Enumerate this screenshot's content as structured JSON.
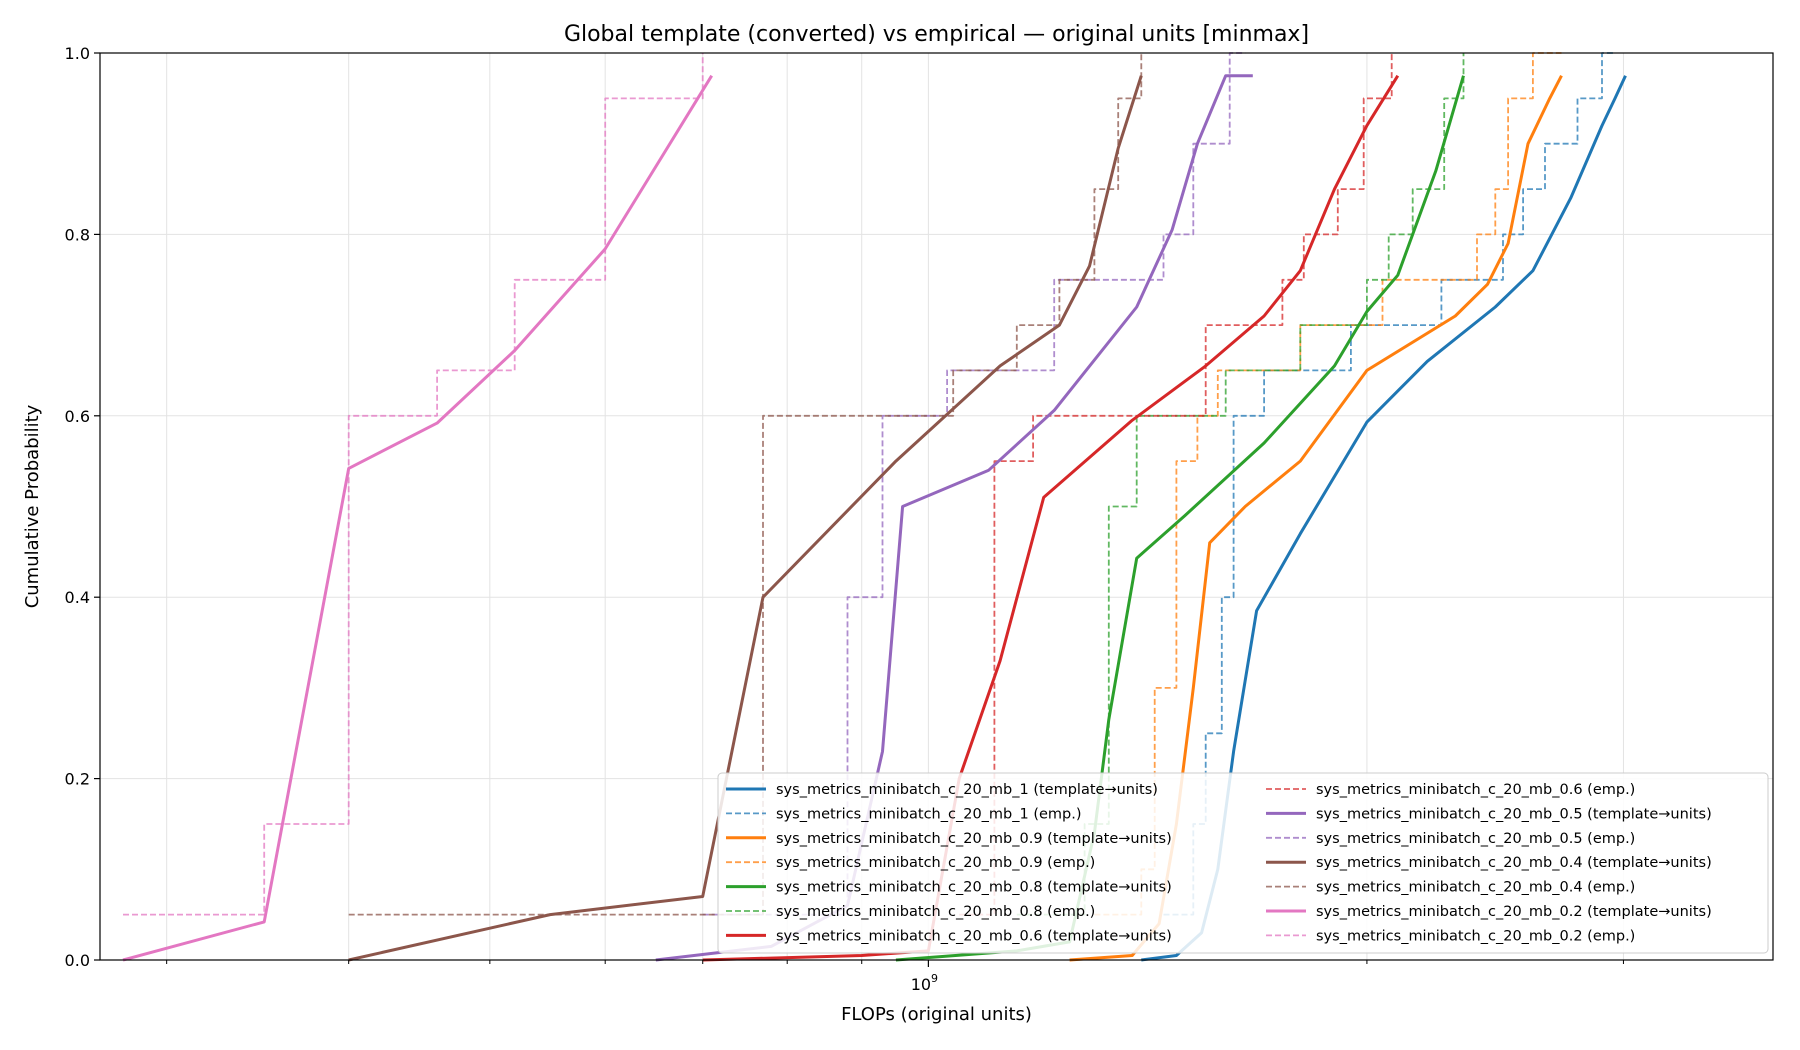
{
  "chart_data": {
    "type": "line",
    "title": "Global template (converted) vs empirical — original units [minmax]",
    "xlabel": "FLOPs (original units)",
    "ylabel": "Cumulative Probability",
    "x_scale": "log",
    "xlim": [
      270000000,
      3800000000
    ],
    "ylim": [
      0,
      1
    ],
    "y_ticks": [
      0.0,
      0.2,
      0.4,
      0.6,
      0.8,
      1.0
    ],
    "y_tick_labels": [
      "0.0",
      "0.2",
      "0.4",
      "0.6",
      "0.8",
      "1.0"
    ],
    "x_major_ticks": [
      1000000000
    ],
    "x_major_tick_labels": [
      "10^9"
    ],
    "x_minor_ticks": [
      300000000,
      400000000,
      500000000,
      600000000,
      700000000,
      800000000,
      900000000,
      2000000000,
      3000000000
    ],
    "grid": true,
    "legend_position": "lower right",
    "series": [
      {
        "name": "sys_metrics_minibatch_c_20_mb_1 (template→units)",
        "style": "solid",
        "color": "#1f77b4",
        "x": [
          1400000000,
          1480000000,
          1540000000,
          1580000000,
          1620000000,
          1680000000,
          1800000000,
          2000000000,
          2200000000,
          2450000000,
          2600000000,
          2760000000,
          2900000000,
          2960000000,
          3010000000
        ],
        "y": [
          0.0,
          0.005,
          0.03,
          0.1,
          0.23,
          0.385,
          0.47,
          0.593,
          0.66,
          0.72,
          0.76,
          0.84,
          0.92,
          0.95,
          0.975
        ]
      },
      {
        "name": "sys_metrics_minibatch_c_20_mb_1 (emp.)",
        "style": "dashed",
        "color": "#1f77b4",
        "x": [
          1450000000,
          1520000000,
          1520000000,
          1550000000,
          1550000000,
          1590000000,
          1590000000,
          1620000000,
          1620000000,
          1700000000,
          1700000000,
          1950000000,
          1950000000,
          2250000000,
          2250000000,
          2480000000,
          2480000000,
          2560000000,
          2560000000,
          2650000000,
          2650000000,
          2790000000,
          2790000000,
          2900000000,
          2900000000,
          2960000000,
          2960000000
        ],
        "y": [
          0.05,
          0.05,
          0.15,
          0.15,
          0.25,
          0.25,
          0.4,
          0.4,
          0.6,
          0.6,
          0.65,
          0.65,
          0.7,
          0.7,
          0.75,
          0.75,
          0.8,
          0.8,
          0.85,
          0.85,
          0.9,
          0.9,
          0.95,
          0.95,
          1.0,
          1.0,
          1.0
        ]
      },
      {
        "name": "sys_metrics_minibatch_c_20_mb_0.9 (template→units)",
        "style": "solid",
        "color": "#ff7f0e",
        "x": [
          1250000000,
          1380000000,
          1440000000,
          1480000000,
          1520000000,
          1560000000,
          1650000000,
          1800000000,
          2000000000,
          2300000000,
          2420000000,
          2500000000,
          2580000000,
          2670000000,
          2720000000
        ],
        "y": [
          0.0,
          0.005,
          0.04,
          0.15,
          0.3,
          0.46,
          0.5,
          0.55,
          0.65,
          0.71,
          0.745,
          0.79,
          0.9,
          0.95,
          0.975
        ]
      },
      {
        "name": "sys_metrics_minibatch_c_20_mb_0.9 (emp.)",
        "style": "dashed",
        "color": "#ff7f0e",
        "x": [
          1300000000,
          1400000000,
          1400000000,
          1430000000,
          1430000000,
          1480000000,
          1480000000,
          1530000000,
          1530000000,
          1580000000,
          1580000000,
          1800000000,
          1800000000,
          2050000000,
          2050000000,
          2380000000,
          2380000000,
          2450000000,
          2450000000,
          2500000000,
          2500000000,
          2600000000,
          2600000000,
          2720000000,
          2720000000
        ],
        "y": [
          0.05,
          0.05,
          0.1,
          0.1,
          0.3,
          0.3,
          0.55,
          0.55,
          0.6,
          0.6,
          0.65,
          0.65,
          0.7,
          0.7,
          0.75,
          0.75,
          0.8,
          0.8,
          0.85,
          0.85,
          0.95,
          0.95,
          1.0,
          1.0,
          1.0
        ]
      },
      {
        "name": "sys_metrics_minibatch_c_20_mb_0.8 (template→units)",
        "style": "solid",
        "color": "#2ca02c",
        "x": [
          950000000,
          1150000000,
          1250000000,
          1300000000,
          1330000000,
          1390000000,
          1500000000,
          1700000000,
          1900000000,
          2000000000,
          2100000000,
          2230000000,
          2330000000
        ],
        "y": [
          0.0,
          0.01,
          0.02,
          0.14,
          0.265,
          0.443,
          0.49,
          0.57,
          0.655,
          0.715,
          0.755,
          0.87,
          0.975
        ]
      },
      {
        "name": "sys_metrics_minibatch_c_20_mb_0.8 (emp.)",
        "style": "dashed",
        "color": "#2ca02c",
        "x": [
          1150000000,
          1280000000,
          1280000000,
          1330000000,
          1330000000,
          1390000000,
          1390000000,
          1600000000,
          1600000000,
          1800000000,
          1800000000,
          2000000000,
          2000000000,
          2070000000,
          2070000000,
          2150000000,
          2150000000,
          2260000000,
          2260000000,
          2330000000,
          2330000000
        ],
        "y": [
          0.05,
          0.05,
          0.15,
          0.15,
          0.5,
          0.5,
          0.6,
          0.6,
          0.65,
          0.65,
          0.7,
          0.7,
          0.75,
          0.75,
          0.8,
          0.8,
          0.85,
          0.85,
          0.95,
          0.95,
          1.0
        ]
      },
      {
        "name": "sys_metrics_minibatch_c_20_mb_0.6 (template→units)",
        "style": "solid",
        "color": "#d62728",
        "x": [
          700000000,
          900000000,
          1000000000,
          1050000000,
          1120000000,
          1200000000,
          1380000000,
          1550000000,
          1700000000,
          1800000000,
          1900000000,
          2000000000,
          2100000000
        ],
        "y": [
          0.0,
          0.005,
          0.01,
          0.2,
          0.33,
          0.51,
          0.595,
          0.655,
          0.71,
          0.76,
          0.85,
          0.92,
          0.975
        ]
      },
      {
        "name": "sys_metrics_minibatch_c_20_mb_0.6 (emp.)",
        "style": "dashed",
        "color": "#d62728",
        "x": [
          1050000000,
          1110000000,
          1110000000,
          1180000000,
          1180000000,
          1550000000,
          1550000000,
          1750000000,
          1750000000,
          1810000000,
          1810000000,
          1910000000,
          1910000000,
          1990000000,
          1990000000,
          2080000000,
          2080000000
        ],
        "y": [
          0.05,
          0.05,
          0.55,
          0.55,
          0.6,
          0.6,
          0.7,
          0.7,
          0.75,
          0.75,
          0.8,
          0.8,
          0.85,
          0.85,
          0.95,
          0.95,
          1.0
        ]
      },
      {
        "name": "sys_metrics_minibatch_c_20_mb_0.5 (template→units)",
        "style": "solid",
        "color": "#9467bd",
        "x": [
          650000000,
          780000000,
          880000000,
          930000000,
          960000000,
          1100000000,
          1220000000,
          1390000000,
          1470000000,
          1530000000,
          1600000000,
          1670000000
        ],
        "y": [
          0.0,
          0.015,
          0.06,
          0.23,
          0.5,
          0.54,
          0.606,
          0.72,
          0.805,
          0.9,
          0.975,
          0.975
        ]
      },
      {
        "name": "sys_metrics_minibatch_c_20_mb_0.5 (emp.)",
        "style": "dashed",
        "color": "#9467bd",
        "x": [
          700000000,
          880000000,
          880000000,
          930000000,
          930000000,
          1030000000,
          1030000000,
          1220000000,
          1220000000,
          1450000000,
          1450000000,
          1520000000,
          1520000000,
          1610000000,
          1610000000,
          1650000000
        ],
        "y": [
          0.05,
          0.05,
          0.4,
          0.4,
          0.6,
          0.6,
          0.65,
          0.65,
          0.75,
          0.75,
          0.8,
          0.8,
          0.9,
          0.9,
          1.0,
          1.0
        ]
      },
      {
        "name": "sys_metrics_minibatch_c_20_mb_0.4 (template→units)",
        "style": "solid",
        "color": "#8c564b",
        "x": [
          400000000,
          550000000,
          700000000,
          770000000,
          950000000,
          1120000000,
          1230000000,
          1290000000,
          1350000000,
          1400000000
        ],
        "y": [
          0.0,
          0.05,
          0.07,
          0.4,
          0.55,
          0.655,
          0.7,
          0.765,
          0.895,
          0.975
        ]
      },
      {
        "name": "sys_metrics_minibatch_c_20_mb_0.4 (emp.)",
        "style": "dashed",
        "color": "#8c564b",
        "x": [
          400000000,
          770000000,
          770000000,
          1040000000,
          1040000000,
          1150000000,
          1150000000,
          1230000000,
          1230000000,
          1300000000,
          1300000000,
          1350000000,
          1350000000,
          1400000000,
          1400000000
        ],
        "y": [
          0.05,
          0.05,
          0.6,
          0.6,
          0.65,
          0.65,
          0.7,
          0.7,
          0.75,
          0.75,
          0.85,
          0.85,
          0.95,
          0.95,
          1.0
        ]
      },
      {
        "name": "sys_metrics_minibatch_c_20_mb_0.2 (template→units)",
        "style": "solid",
        "color": "#e377c2",
        "x": [
          280000000,
          350000000,
          400000000,
          460000000,
          520000000,
          600000000,
          710000000
        ],
        "y": [
          0.0,
          0.042,
          0.542,
          0.592,
          0.672,
          0.784,
          0.975
        ]
      },
      {
        "name": "sys_metrics_minibatch_c_20_mb_0.2 (emp.)",
        "style": "dashed",
        "color": "#e377c2",
        "x": [
          280000000,
          350000000,
          350000000,
          400000000,
          400000000,
          460000000,
          460000000,
          520000000,
          520000000,
          600000000,
          600000000,
          700000000,
          700000000
        ],
        "y": [
          0.05,
          0.05,
          0.15,
          0.15,
          0.6,
          0.6,
          0.65,
          0.65,
          0.75,
          0.75,
          0.95,
          0.95,
          1.0
        ]
      }
    ]
  }
}
